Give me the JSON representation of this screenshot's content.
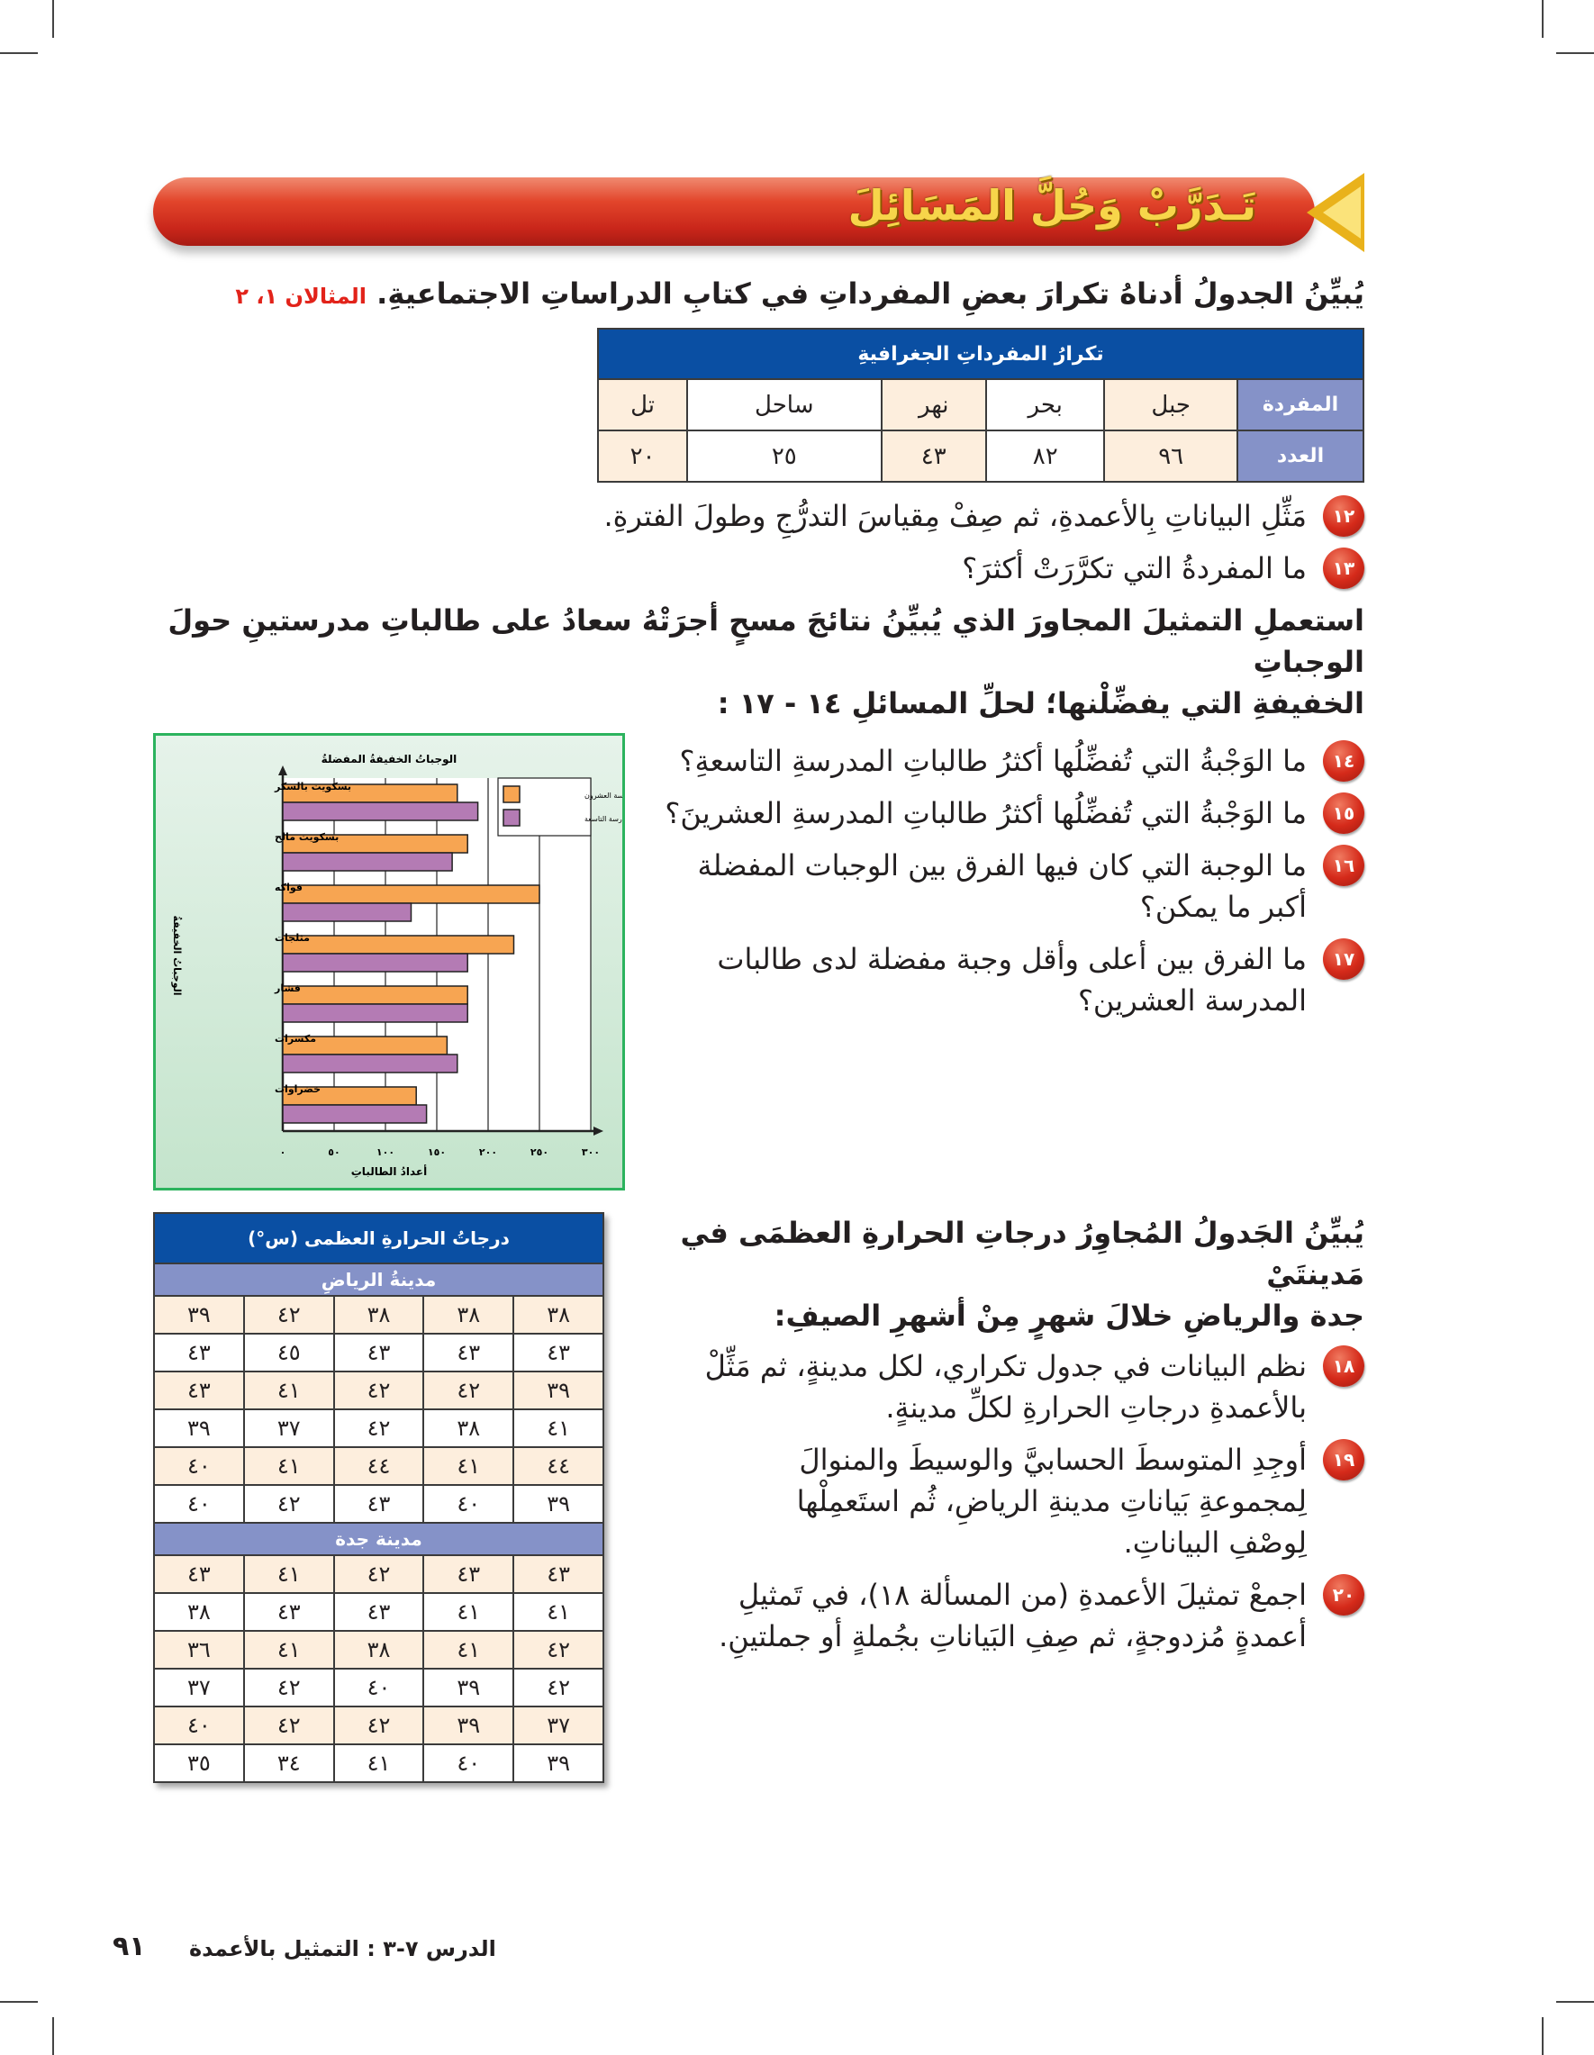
{
  "banner": {
    "title": "تَـدَرَّبْ وَحُلَّ المَسَائِلَ"
  },
  "intro": {
    "text": "يُبيِّنُ الجدولُ أدناهُ تكرارَ بعضِ المفرداتِ في كتابِ الدراساتِ الاجتماعيةِ.",
    "ref": "المثالان ١، ٢"
  },
  "vocab_table": {
    "title": "تكرارُ المفرداتِ الجغرافيةِ",
    "row_labels": [
      "المفردة",
      "العدد"
    ],
    "words": [
      "جبل",
      "بحر",
      "نهر",
      "ساحل",
      "تل"
    ],
    "counts": [
      "٩٦",
      "٨٢",
      "٤٣",
      "٢٥",
      "٢٠"
    ]
  },
  "questions_a": [
    {
      "num": "١٢",
      "text": "مَثِّلِ البياناتِ بِالأعمدةِ، ثم صِفْ مِقياسَ التدرُّجِ وطولَ الفترةِ."
    },
    {
      "num": "١٣",
      "text": "ما المفردةُ التي تكرَّرَتْ أكثرَ؟"
    }
  ],
  "paragraph_b": [
    "استعملِ التمثيلَ المجاورَ الذي يُبيِّنُ نتائجَ مسحٍ أجرَتْهُ سعادُ على طالباتِ مدرستينِ حولَ الوجباتِ",
    "الخفيفةِ التي يفضِّلْنها؛ لحلِّ المسائلِ ١٤ - ١٧ :"
  ],
  "questions_b": [
    {
      "num": "١٤",
      "lines": [
        "ما الوَجْبةُ التي تُفضِّلُها أكثرُ طالباتِ المدرسةِ التاسعةِ؟"
      ]
    },
    {
      "num": "١٥",
      "lines": [
        "ما الوَجْبةُ التي تُفضِّلُها أكثرُ طالباتِ المدرسةِ العشرينَ؟"
      ]
    },
    {
      "num": "١٦",
      "lines": [
        "ما الوجبة التي كان فيها الفرق بين الوجبات المفضلة",
        "أكبر ما يمكن؟"
      ]
    },
    {
      "num": "١٧",
      "lines": [
        "ما الفرق بين أعلى وأقل وجبة مفضلة لدى طالبات",
        "المدرسة العشرين؟"
      ]
    }
  ],
  "chart_data": {
    "type": "bar",
    "orientation": "horizontal",
    "title": "الوجباتُ الخفيفةُ المفضلةُ",
    "xlabel": "أعدادُ الطالباتِ",
    "ylabel": "الوجباتُ الخفيفةُ",
    "categories": [
      "بسكويت بالسكر",
      "بسكويت مالح",
      "فواكه",
      "مثلجات",
      "فشار",
      "مكسرات",
      "خضراوات"
    ],
    "series": [
      {
        "name": "المدرسة العشرون",
        "color": "#f7a552",
        "values": [
          170,
          180,
          250,
          225,
          180,
          160,
          130
        ]
      },
      {
        "name": "المدرسة التاسعة",
        "color": "#b47bb4",
        "values": [
          190,
          165,
          125,
          180,
          180,
          170,
          140
        ]
      }
    ],
    "xlim": [
      0,
      300
    ],
    "xticks": [
      0,
      50,
      100,
      150,
      200,
      250,
      300
    ],
    "xtick_labels": [
      "٠",
      "٥٠",
      "١٠٠",
      "١٥٠",
      "٢٠٠",
      "٢٥٠",
      "٣٠٠"
    ],
    "grid": true,
    "legend": "top-right"
  },
  "temp_table": {
    "title": "درجاتُ الحرارةِ العظمى (س°)",
    "riyadh_label": "مدينةُ الرياضِ",
    "riyadh": [
      [
        "٣٨",
        "٣٨",
        "٣٨",
        "٤٢",
        "٣٩"
      ],
      [
        "٤٣",
        "٤٣",
        "٤٣",
        "٤٥",
        "٤٣"
      ],
      [
        "٣٩",
        "٤٢",
        "٤٢",
        "٤١",
        "٤٣"
      ],
      [
        "٤١",
        "٣٨",
        "٤٢",
        "٣٧",
        "٣٩"
      ],
      [
        "٤٤",
        "٤١",
        "٤٤",
        "٤١",
        "٤٠"
      ],
      [
        "٣٩",
        "٤٠",
        "٤٣",
        "٤٢",
        "٤٠"
      ]
    ],
    "jeddah_label": "مدينة جدة",
    "jeddah": [
      [
        "٤٣",
        "٤٣",
        "٤٢",
        "٤١",
        "٤٣"
      ],
      [
        "٤١",
        "٤١",
        "٤٣",
        "٤٣",
        "٣٨"
      ],
      [
        "٤٢",
        "٤١",
        "٣٨",
        "٤١",
        "٣٦"
      ],
      [
        "٤٢",
        "٣٩",
        "٤٠",
        "٤٢",
        "٣٧"
      ],
      [
        "٣٧",
        "٣٩",
        "٤٢",
        "٤٢",
        "٤٠"
      ],
      [
        "٣٩",
        "٤٠",
        "٤١",
        "٣٤",
        "٣٥"
      ]
    ]
  },
  "paragraph_c": [
    "يُبيِّنُ الجَدولُ المُجاوِرُ درجاتِ الحرارةِ العظمَى في مَدينتَيْ",
    "جدة والرياضِ خلالَ شهرٍ مِنْ أشهرِ الصيفِ:"
  ],
  "questions_c": [
    {
      "num": "١٨",
      "lines": [
        "نظم البيانات في جدول تكراري، لكل مدينةٍ، ثم مَثِّلْ",
        "بالأعمدةِ درجاتِ الحرارةِ لكلِّ مدينةٍ."
      ]
    },
    {
      "num": "١٩",
      "lines": [
        "أوجِدِ المتوسطَ الحسابيَّ والوسيطَ والمنوالَ",
        "لِمجموعةِ بَياناتِ مدينةِ الرياضِ، ثُم استَعمِلْها",
        "لِوصْفِ البياناتِ."
      ]
    },
    {
      "num": "٢٠",
      "lines": [
        "اجمعْ تمثيلَ الأعمدةِ (من المسألة ١٨)، في تَمثيلِ",
        "أعمدةٍ مُزدوجةٍ، ثم صِفِ البَياناتِ بجُملةٍ أو جملتينِ."
      ]
    }
  ],
  "footer": {
    "lesson": "الدرس ٧-٣ :  التمثيل بالأعمدة",
    "page": "٩١"
  }
}
